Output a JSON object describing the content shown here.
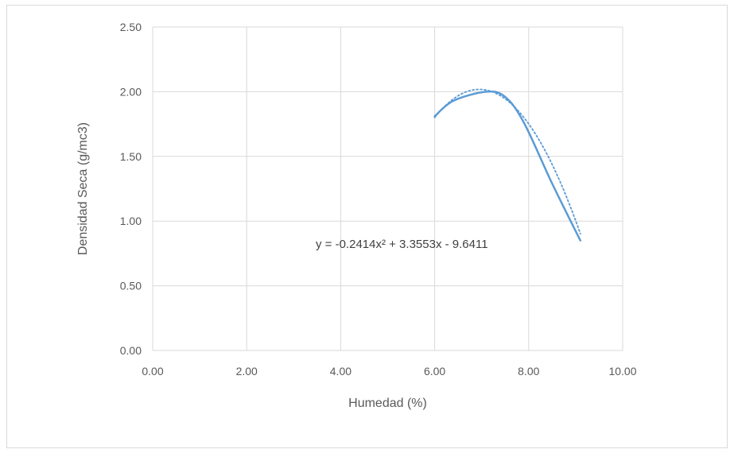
{
  "chart_data": {
    "type": "scatter",
    "title": "",
    "xlabel": "Humedad (%)",
    "ylabel": "Densidad Seca (g/mc3)",
    "xlim": [
      0,
      10
    ],
    "ylim": [
      0,
      2.5
    ],
    "xticks": [
      0,
      2,
      4,
      6,
      8,
      10
    ],
    "yticks": [
      0,
      0.5,
      1,
      1.5,
      2,
      2.5
    ],
    "xtick_labels": [
      "0.00",
      "2.00",
      "4.00",
      "6.00",
      "8.00",
      "10.00"
    ],
    "ytick_labels": [
      "0.00",
      "0.50",
      "1.00",
      "1.50",
      "2.00",
      "2.50"
    ],
    "grid": true,
    "series": [
      {
        "style": "smooth-line",
        "color": "#5b9bd5",
        "x": [
          6.0,
          6.4,
          7.1,
          7.5,
          7.9,
          8.5,
          9.1
        ],
        "y": [
          1.81,
          1.93,
          2.0,
          1.96,
          1.76,
          1.29,
          0.85
        ]
      }
    ],
    "trendline": {
      "type": "polynomial",
      "order": 2,
      "style": "dotted",
      "color": "#5b9bd5",
      "coefficients": [
        -0.2414,
        3.3553,
        -9.6411
      ],
      "x_range": [
        6.0,
        9.1
      ],
      "equation_label": "y = -0.2414x² + 3.3553x - 9.6411"
    }
  }
}
